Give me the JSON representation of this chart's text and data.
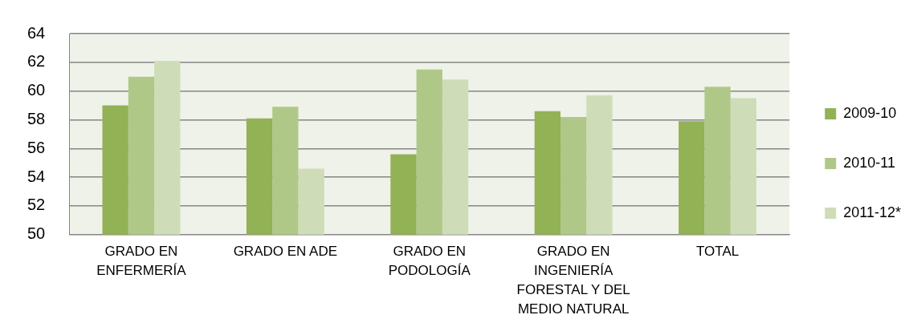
{
  "chart_data": {
    "type": "bar",
    "categories": [
      "GRADO EN ENFERMERÍA",
      "GRADO EN ADE",
      "GRADO EN PODOLOGÍA",
      "GRADO EN INGENIERÍA FORESTAL Y DEL MEDIO NATURAL",
      "TOTAL"
    ],
    "series": [
      {
        "name": "2009-10",
        "color": "#93b155",
        "values": [
          59.0,
          58.1,
          55.6,
          58.6,
          57.9
        ]
      },
      {
        "name": "2010-11",
        "color": "#afc887",
        "values": [
          61.0,
          58.9,
          61.5,
          58.2,
          60.3
        ]
      },
      {
        "name": "2011-12*",
        "color": "#cfdcb8",
        "values": [
          62.1,
          54.6,
          60.8,
          59.7,
          59.5
        ]
      }
    ],
    "ylim": [
      50,
      64
    ],
    "yticks": [
      50,
      52,
      54,
      56,
      58,
      60,
      62,
      64
    ],
    "grid": "y",
    "legend": "right"
  }
}
